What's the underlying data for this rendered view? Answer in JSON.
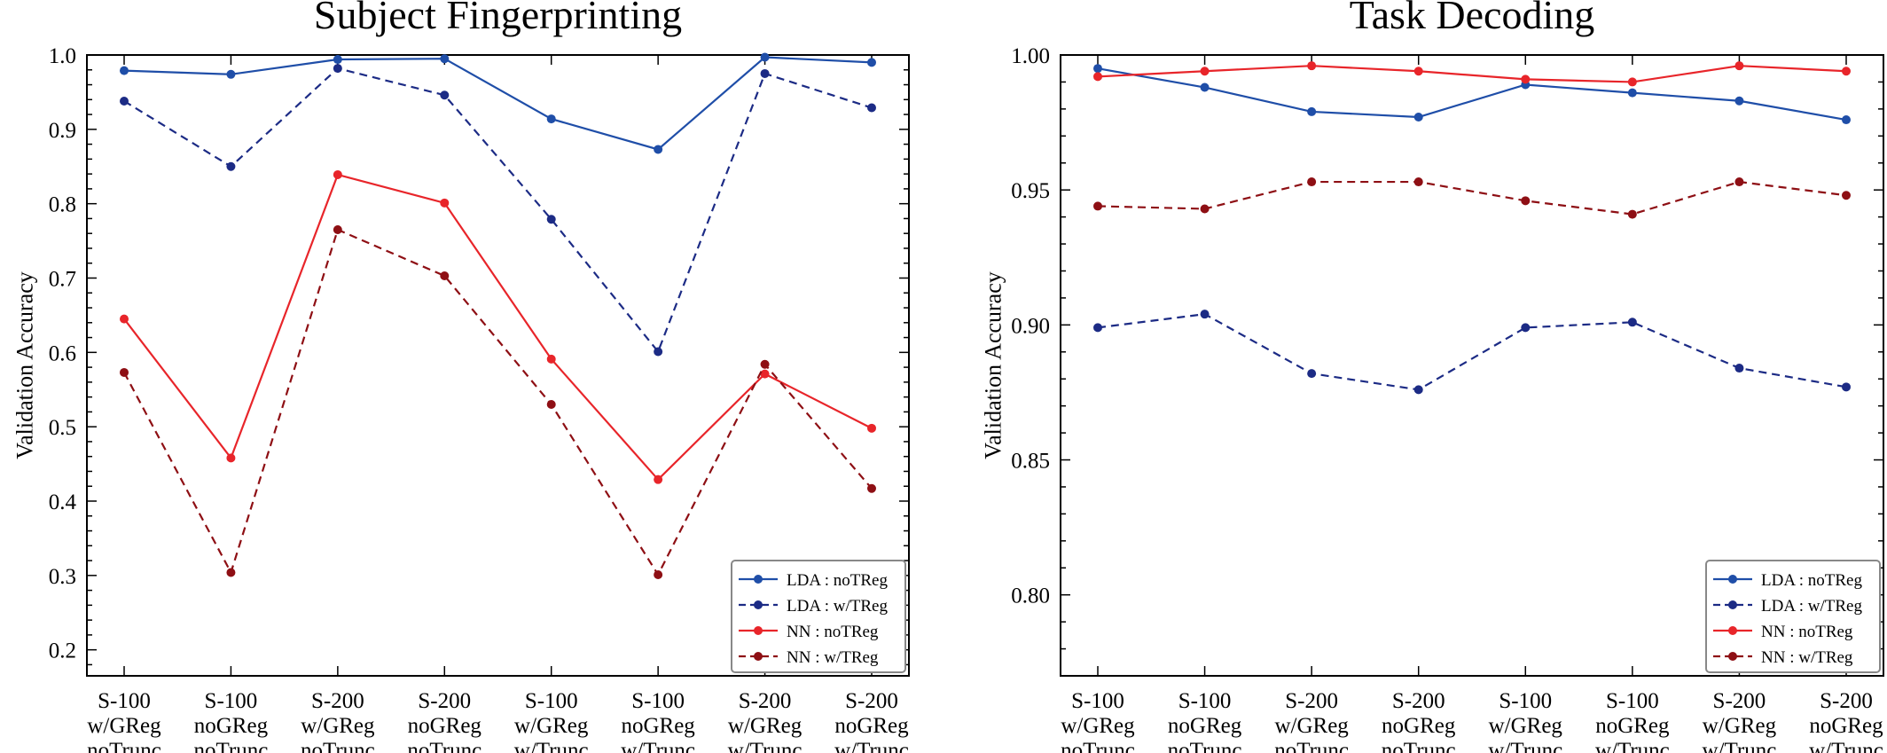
{
  "colors": {
    "lda": "#1f4ea8",
    "lda_dashed": "#1c2b85",
    "nn": "#e8252a",
    "nn_dashed": "#8e0f14",
    "axis": "#000000"
  },
  "chart_data": [
    {
      "type": "line",
      "title": "Subject Fingerprinting",
      "xlabel": "",
      "ylabel": "Validation Accuracy",
      "ylim": [
        0.165,
        1.0
      ],
      "yticks": [
        0.2,
        0.3,
        0.4,
        0.5,
        0.6,
        0.7,
        0.8,
        0.9,
        1.0
      ],
      "ytick_labels": [
        "0.2",
        "0.3",
        "0.4",
        "0.5",
        "0.6",
        "0.7",
        "0.8",
        "0.9",
        "1.0"
      ],
      "grid": false,
      "legend_position": "bottom-right",
      "categories": [
        [
          "S-100",
          "w/GReg",
          "noTrunc"
        ],
        [
          "S-100",
          "noGReg",
          "noTrunc"
        ],
        [
          "S-200",
          "w/GReg",
          "noTrunc"
        ],
        [
          "S-200",
          "noGReg",
          "noTrunc"
        ],
        [
          "S-100",
          "w/GReg",
          "w/Trunc"
        ],
        [
          "S-100",
          "noGReg",
          "w/Trunc"
        ],
        [
          "S-200",
          "w/GReg",
          "w/Trunc"
        ],
        [
          "S-200",
          "noGReg",
          "w/Trunc"
        ]
      ],
      "series": [
        {
          "name": "LDA : noTReg",
          "color": "#1f4ea8",
          "dashed": false,
          "values": [
            0.979,
            0.974,
            0.994,
            0.995,
            0.914,
            0.873,
            0.997,
            0.99
          ]
        },
        {
          "name": "LDA : w/TReg",
          "color": "#1c2b85",
          "dashed": true,
          "values": [
            0.938,
            0.85,
            0.982,
            0.946,
            0.779,
            0.601,
            0.975,
            0.929
          ]
        },
        {
          "name": "NN : noTReg",
          "color": "#e8252a",
          "dashed": false,
          "values": [
            0.645,
            0.458,
            0.839,
            0.801,
            0.591,
            0.429,
            0.571,
            0.498
          ]
        },
        {
          "name": "NN : w/TReg",
          "color": "#8e0f14",
          "dashed": true,
          "values": [
            0.573,
            0.304,
            0.765,
            0.703,
            0.53,
            0.301,
            0.584,
            0.417
          ]
        }
      ]
    },
    {
      "type": "line",
      "title": "Task Decoding",
      "xlabel": "",
      "ylabel": "Validation Accuracy",
      "ylim": [
        0.77,
        1.0
      ],
      "yticks": [
        0.8,
        0.85,
        0.9,
        0.95,
        1.0
      ],
      "ytick_labels": [
        "0.80",
        "0.85",
        "0.90",
        "0.95",
        "1.00"
      ],
      "grid": false,
      "legend_position": "bottom-right",
      "categories": [
        [
          "S-100",
          "w/GReg",
          "noTrunc"
        ],
        [
          "S-100",
          "noGReg",
          "noTrunc"
        ],
        [
          "S-200",
          "w/GReg",
          "noTrunc"
        ],
        [
          "S-200",
          "noGReg",
          "noTrunc"
        ],
        [
          "S-100",
          "w/GReg",
          "w/Trunc"
        ],
        [
          "S-100",
          "noGReg",
          "w/Trunc"
        ],
        [
          "S-200",
          "w/GReg",
          "w/Trunc"
        ],
        [
          "S-200",
          "noGReg",
          "w/Trunc"
        ]
      ],
      "series": [
        {
          "name": "LDA : noTReg",
          "color": "#1f4ea8",
          "dashed": false,
          "values": [
            0.995,
            0.988,
            0.979,
            0.977,
            0.989,
            0.986,
            0.983,
            0.976
          ]
        },
        {
          "name": "LDA : w/TReg",
          "color": "#1c2b85",
          "dashed": true,
          "values": [
            0.899,
            0.904,
            0.882,
            0.876,
            0.899,
            0.901,
            0.884,
            0.877
          ]
        },
        {
          "name": "NN : noTReg",
          "color": "#e8252a",
          "dashed": false,
          "values": [
            0.992,
            0.994,
            0.996,
            0.994,
            0.991,
            0.99,
            0.996,
            0.994
          ]
        },
        {
          "name": "NN : w/TReg",
          "color": "#8e0f14",
          "dashed": true,
          "values": [
            0.944,
            0.943,
            0.953,
            0.953,
            0.946,
            0.941,
            0.953,
            0.948
          ]
        }
      ]
    }
  ]
}
